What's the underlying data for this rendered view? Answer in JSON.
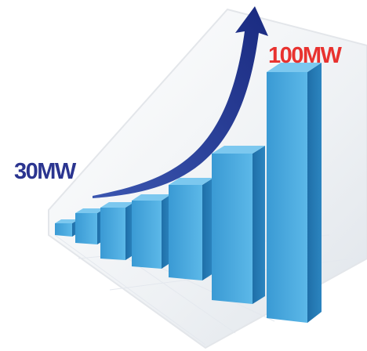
{
  "labels": {
    "start": "30MW",
    "end": "100MW"
  }
}
